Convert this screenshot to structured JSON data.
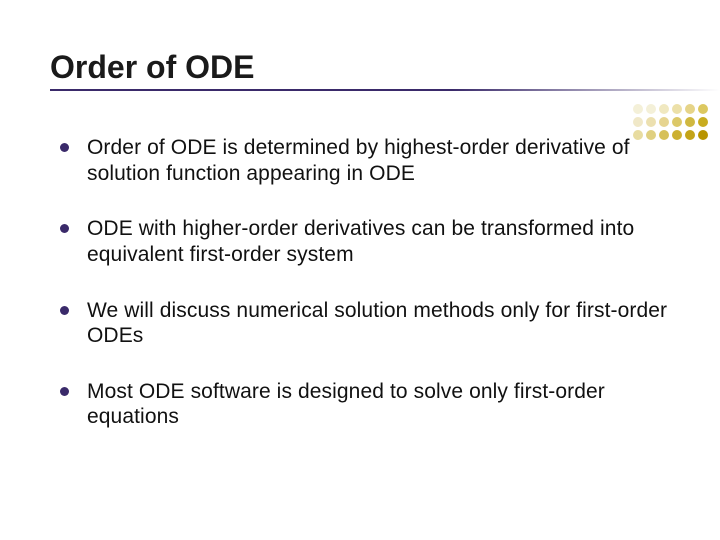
{
  "title": "Order of ODE",
  "title_fontsize": 32,
  "title_color": "#1a1a1a",
  "underline_color": "#3a2a6a",
  "background_color": "#ffffff",
  "bullets": [
    "Order of ODE is determined by highest-order derivative of solution function appearing in ODE",
    "ODE with higher-order derivatives can be transformed into equivalent first-order system",
    "We will discuss numerical solution methods only for first-order ODEs",
    "Most ODE software is designed to solve only first-order equations"
  ],
  "bullet_marker_color": "#3a2a6a",
  "bullet_fontsize": 21,
  "bullet_text_color": "#111111",
  "decorative_dots": {
    "rows": 3,
    "cols": 6,
    "dot_size": 10,
    "gap": 3,
    "colors": [
      [
        "#f4f0d8",
        "#f4f0d8",
        "#f0e8c0",
        "#ece0a8",
        "#e6d488",
        "#dcc860"
      ],
      [
        "#f0e8c8",
        "#ece0b0",
        "#e6d490",
        "#dcc868",
        "#d0b840",
        "#c8ac20"
      ],
      [
        "#e8dca0",
        "#e0d080",
        "#d6c058",
        "#ccb030",
        "#c4a418",
        "#b89400"
      ]
    ]
  }
}
